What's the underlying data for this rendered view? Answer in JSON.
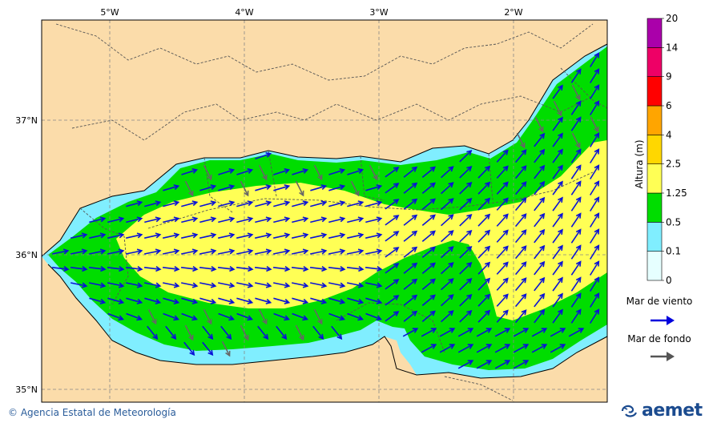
{
  "map": {
    "lon_labels": [
      "5°W",
      "4°W",
      "3°W",
      "2°W"
    ],
    "lat_labels": [
      "37°N",
      "36°N",
      "35°N"
    ],
    "lon_values": [
      -5,
      -4,
      -3,
      -2
    ],
    "lat_values": [
      37,
      36,
      35
    ],
    "lon_range": [
      -5.5,
      -1.4
    ],
    "lat_range": [
      34.9,
      37.75
    ]
  },
  "legend": {
    "title": "Altura (m)",
    "bins": [
      {
        "label": "0",
        "color": "#e6ffff"
      },
      {
        "label": "0.1",
        "color": "#80eeff"
      },
      {
        "label": "0.5",
        "color": "#00dd00"
      },
      {
        "label": "1.25",
        "color": "#ffff55"
      },
      {
        "label": "2.5",
        "color": "#ffd700"
      },
      {
        "label": "4",
        "color": "#ffa500"
      },
      {
        "label": "6",
        "color": "#ff0000"
      },
      {
        "label": "9",
        "color": "#ee0066"
      },
      {
        "label": "14",
        "color": "#aa00aa"
      },
      {
        "label": "20",
        "color": ""
      }
    ],
    "arrows": [
      {
        "label": "Mar de viento",
        "color": "#0000dd"
      },
      {
        "label": "Mar de fondo",
        "color": "#555555"
      }
    ]
  },
  "footer": {
    "copyright_symbol": "©",
    "credit": "Agencia Estatal de Meteorología",
    "brand": "aemet"
  },
  "colors": {
    "land": "#fbdcaa",
    "sea_cyan": "#80eeff",
    "sea_green": "#00dd00",
    "sea_yellow": "#ffff55"
  }
}
